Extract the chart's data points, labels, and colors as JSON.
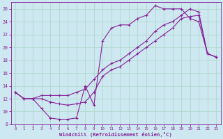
{
  "xlabel": "Windchill (Refroidissement éolien,°C)",
  "xlim": [
    -0.5,
    23.5
  ],
  "ylim": [
    8,
    27
  ],
  "xticks": [
    0,
    1,
    2,
    3,
    4,
    5,
    6,
    7,
    8,
    9,
    10,
    11,
    12,
    13,
    14,
    15,
    16,
    17,
    18,
    19,
    20,
    21,
    22,
    23
  ],
  "yticks": [
    8,
    10,
    12,
    14,
    16,
    18,
    20,
    22,
    24,
    26
  ],
  "background_color": "#cde8f0",
  "grid_color": "#b0d8cc",
  "line_color": "#882299",
  "line1_x": [
    0,
    1,
    2,
    3,
    4,
    5,
    6,
    7,
    8,
    9,
    10,
    11,
    12,
    13,
    14,
    15,
    16,
    17,
    18,
    19,
    20,
    21,
    22,
    23
  ],
  "line1_y": [
    13.0,
    12.0,
    12.0,
    10.5,
    9.0,
    8.8,
    8.8,
    9.0,
    14.0,
    11.0,
    21.0,
    23.0,
    23.5,
    23.5,
    24.5,
    25.0,
    26.5,
    26.0,
    26.0,
    26.0,
    24.5,
    24.0,
    19.0,
    18.5
  ],
  "line2_x": [
    0,
    1,
    2,
    3,
    4,
    5,
    6,
    7,
    8,
    9,
    10,
    11,
    12,
    13,
    14,
    15,
    16,
    17,
    18,
    19,
    20,
    21,
    22,
    23
  ],
  "line2_y": [
    13.0,
    12.0,
    12.0,
    12.0,
    11.5,
    11.2,
    11.0,
    11.2,
    11.5,
    13.0,
    15.5,
    16.5,
    17.0,
    18.0,
    19.0,
    20.0,
    21.0,
    22.0,
    23.0,
    24.5,
    24.8,
    25.0,
    19.0,
    18.5
  ],
  "line3_x": [
    0,
    1,
    2,
    3,
    4,
    5,
    6,
    7,
    8,
    9,
    10,
    11,
    12,
    13,
    14,
    15,
    16,
    17,
    18,
    19,
    20,
    21,
    22,
    23
  ],
  "line3_y": [
    13.0,
    12.0,
    12.0,
    12.5,
    12.5,
    12.5,
    12.5,
    13.0,
    13.5,
    15.0,
    16.5,
    17.5,
    18.0,
    19.0,
    20.0,
    21.0,
    22.5,
    23.5,
    24.0,
    25.0,
    26.0,
    25.5,
    19.0,
    18.5
  ]
}
